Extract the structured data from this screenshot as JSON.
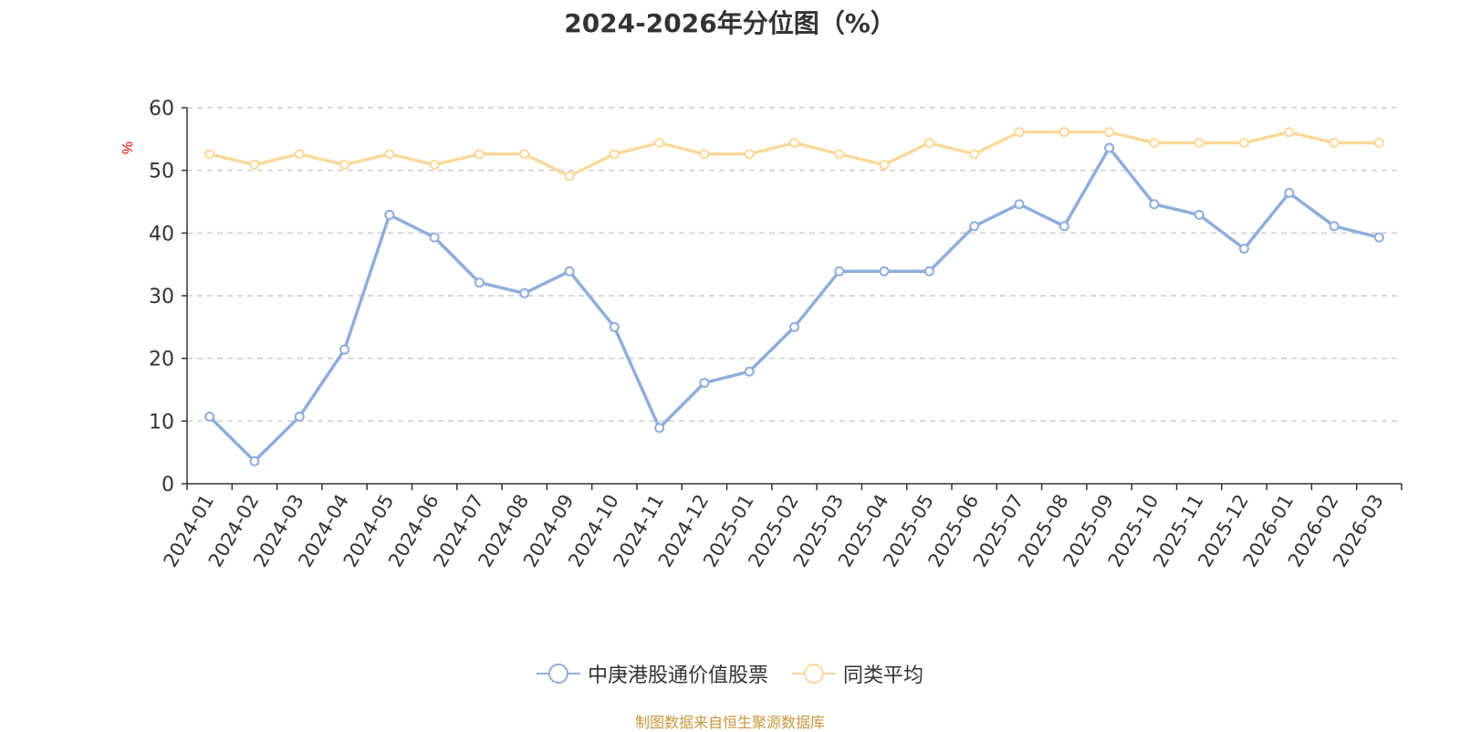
{
  "chart_data": {
    "type": "line",
    "title": "2024-2026年分位图（%）",
    "ylabel": "%",
    "xlabel": "",
    "ylim": [
      0,
      60
    ],
    "yticks": [
      0,
      10,
      20,
      30,
      40,
      50,
      60
    ],
    "grid": true,
    "legend_position": "bottom",
    "categories": [
      "2024-01",
      "2024-02",
      "2024-03",
      "2024-04",
      "2024-05",
      "2024-06",
      "2024-07",
      "2024-08",
      "2024-09",
      "2024-10",
      "2024-11",
      "2024-12",
      "2025-01",
      "2025-02",
      "2025-03",
      "2025-04",
      "2025-05",
      "2025-06",
      "2025-07",
      "2025-08",
      "2025-09",
      "2025-10",
      "2025-11",
      "2025-12",
      "2026-01",
      "2026-02",
      "2026-03"
    ],
    "series": [
      {
        "name": "中庚港股通价值股票",
        "color": "#8eaedb",
        "values": [
          10.7,
          3.6,
          10.7,
          21.4,
          42.9,
          39.3,
          32.1,
          30.4,
          33.9,
          25.0,
          8.9,
          16.1,
          17.9,
          25.0,
          33.9,
          33.9,
          33.9,
          41.1,
          44.6,
          41.1,
          53.6,
          44.6,
          42.9,
          37.5,
          46.4,
          41.1,
          39.3
        ]
      },
      {
        "name": "同类平均",
        "color": "#fbd99b",
        "values": [
          52.6,
          50.9,
          52.6,
          50.9,
          52.6,
          50.9,
          52.6,
          52.6,
          49.1,
          52.6,
          54.4,
          52.6,
          52.6,
          54.4,
          52.6,
          50.9,
          54.4,
          52.6,
          56.1,
          56.1,
          56.1,
          54.4,
          54.4,
          54.4,
          56.1,
          54.4,
          54.4
        ]
      }
    ]
  },
  "source": "制图数据来自恒生聚源数据库"
}
